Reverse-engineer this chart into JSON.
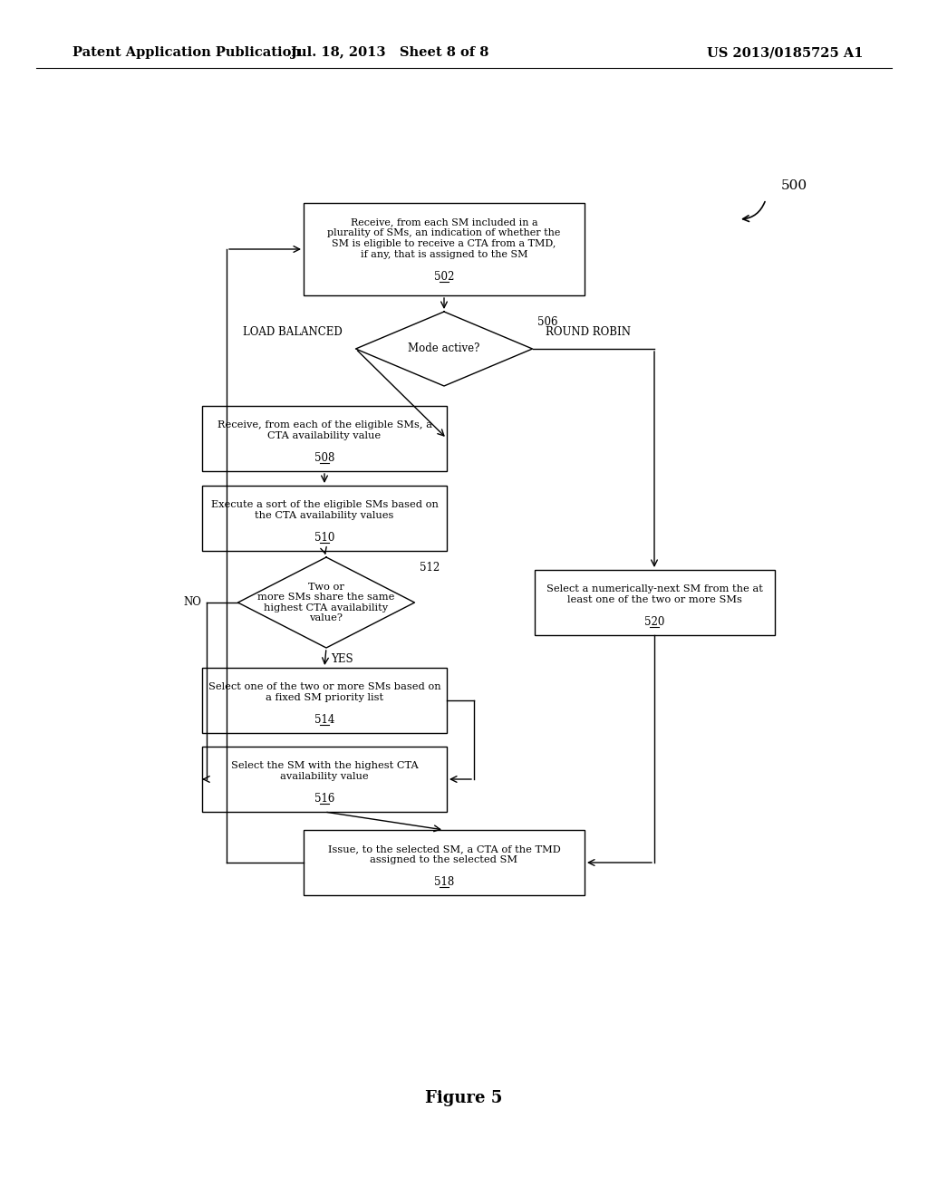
{
  "bg_color": "#ffffff",
  "header_left": "Patent Application Publication",
  "header_mid": "Jul. 18, 2013   Sheet 8 of 8",
  "header_right": "US 2013/0185725 A1",
  "figure_label": "Figure 5",
  "ref_number": "500",
  "node_502_text_main": "Receive, from each SM included in a\nplurality of SMs, an indication of whether the\nSM is eligible to receive a CTA from a TMD,\nif any, that is assigned to the SM",
  "node_502_num": "502",
  "node_506_text": "Mode active?",
  "node_506_label": "506",
  "node_508_text_main": "Receive, from each of the eligible SMs, a\nCTA availability value",
  "node_508_num": "508",
  "node_510_text_main": "Execute a sort of the eligible SMs based on\nthe CTA availability values",
  "node_510_num": "510",
  "node_512_text": "Two or\nmore SMs share the same\nhighest CTA availability\nvalue?",
  "node_512_label": "512",
  "node_514_text_main": "Select one of the two or more SMs based on\na fixed SM priority list",
  "node_514_num": "514",
  "node_516_text_main": "Select the SM with the highest CTA\navailability value",
  "node_516_num": "516",
  "node_518_text_main": "Issue, to the selected SM, a CTA of the TMD\nassigned to the selected SM",
  "node_518_num": "518",
  "node_520_text_main": "Select a numerically-next SM from the at\nleast one of the two or more SMs",
  "node_520_num": "520",
  "lbl_load_balanced": "LOAD BALANCED",
  "lbl_round_robin": "ROUND ROBIN",
  "lbl_no": "NO",
  "lbl_yes": "YES"
}
